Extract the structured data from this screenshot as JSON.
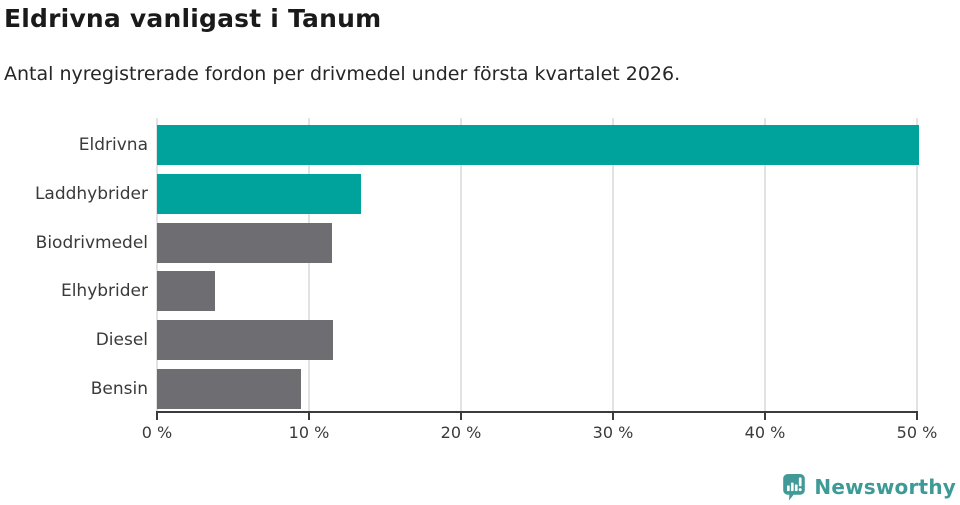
{
  "header": {
    "title": "Eldrivna vanligast i Tanum",
    "subtitle": "Antal nyregistrerade fordon per drivmedel under första kvartalet 2026."
  },
  "chart_data": {
    "type": "bar",
    "orientation": "horizontal",
    "title": "Eldrivna vanligast i Tanum",
    "subtitle": "Antal nyregistrerade fordon per drivmedel under första kvartalet 2026.",
    "categories": [
      "Eldrivna",
      "Laddhybrider",
      "Biodrivmedel",
      "Elhybrider",
      "Diesel",
      "Bensin"
    ],
    "values": [
      50.1,
      13.4,
      11.5,
      3.8,
      11.6,
      9.5
    ],
    "unit": "%",
    "bar_colors": [
      "#00a39b",
      "#00a39b",
      "#6d6d72",
      "#6d6d72",
      "#6d6d72",
      "#6d6d72"
    ],
    "accent_color": "#00a39b",
    "neutral_color": "#6d6d72",
    "xlabel": "",
    "ylabel": "",
    "xlim": [
      0,
      50
    ],
    "x_tick_values": [
      0,
      10,
      20,
      30,
      40,
      50
    ],
    "x_tick_labels": [
      "0 %",
      "10 %",
      "20 %",
      "30 %",
      "40 %",
      "50 %"
    ],
    "grid": true,
    "gridline_color": "#e2e2e2",
    "axis_color": "#3b3b3b",
    "legend": false
  },
  "footer": {
    "brand": "Newsworthy",
    "brand_color": "#3d9a96",
    "logo_icon": "newsworthy-speech-bubble-bar-chart-icon",
    "logo_color": "#419a97"
  }
}
